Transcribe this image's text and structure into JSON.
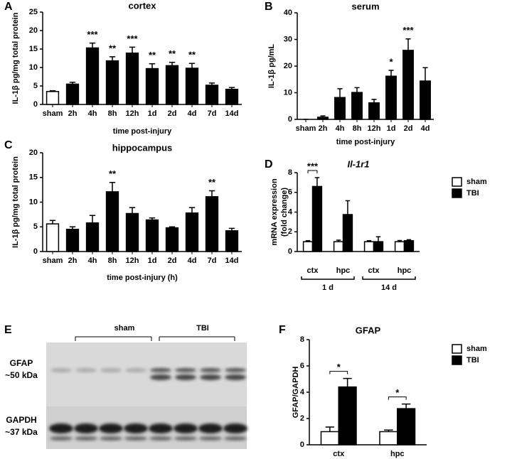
{
  "chart_data": [
    {
      "type": "bar",
      "panel": "A",
      "title": "cortex",
      "ylabel": "IL-1β pg/mg total protein",
      "xlabel": "time post-injury",
      "categories": [
        "sham",
        "2h",
        "4h",
        "8h",
        "12h",
        "1d",
        "2d",
        "4d",
        "7d",
        "14d"
      ],
      "values": [
        3.5,
        5.5,
        15.3,
        11.8,
        13.9,
        9.7,
        10.5,
        9.8,
        5.2,
        4.1
      ],
      "errors": [
        0.2,
        0.5,
        1.3,
        1.1,
        1.6,
        1.3,
        0.9,
        1.3,
        0.6,
        0.5
      ],
      "colors": [
        "#ffffff",
        "#000000",
        "#000000",
        "#000000",
        "#000000",
        "#000000",
        "#000000",
        "#000000",
        "#000000",
        "#000000"
      ],
      "annotations": [
        null,
        null,
        "***",
        "**",
        "***",
        "**",
        "**",
        "**",
        null,
        null
      ],
      "ylim": [
        0,
        25
      ],
      "yticks": [
        0,
        5,
        10,
        15,
        20,
        25
      ]
    },
    {
      "type": "bar",
      "panel": "B",
      "title": "serum",
      "ylabel": "IL-1β pg/mL",
      "xlabel": "time post-injury",
      "categories": [
        "sham",
        "2h",
        "4h",
        "8h",
        "12h",
        "1d",
        "2d",
        "4d"
      ],
      "values": [
        0,
        0.8,
        8.2,
        10.1,
        6.2,
        16.2,
        25.9,
        14.4
      ],
      "errors": [
        0,
        0.5,
        3.3,
        1.8,
        1.3,
        2.2,
        4.3,
        5
      ],
      "colors": [
        "#ffffff",
        "#000000",
        "#000000",
        "#000000",
        "#000000",
        "#000000",
        "#000000",
        "#000000"
      ],
      "annotations": [
        null,
        null,
        null,
        null,
        null,
        "*",
        "***",
        null
      ],
      "ylim": [
        0,
        40
      ],
      "yticks": [
        0,
        10,
        20,
        30,
        40
      ]
    },
    {
      "type": "bar",
      "panel": "C",
      "title": "hippocampus",
      "ylabel": "IL-1β pg/mg total protein",
      "xlabel": "time post-injury (h)",
      "categories": [
        "sham",
        "2h",
        "4h",
        "8h",
        "12h",
        "1d",
        "2d",
        "4d",
        "7d",
        "14d"
      ],
      "values": [
        5.6,
        4.5,
        5.8,
        12.1,
        7.7,
        6.4,
        4.8,
        7.8,
        11.1,
        4.2
      ],
      "errors": [
        0.7,
        0.5,
        1.5,
        1.9,
        1.2,
        0.4,
        0.2,
        1.1,
        1.2,
        0.5
      ],
      "colors": [
        "#ffffff",
        "#000000",
        "#000000",
        "#000000",
        "#000000",
        "#000000",
        "#000000",
        "#000000",
        "#000000",
        "#000000"
      ],
      "annotations": [
        null,
        null,
        null,
        "**",
        null,
        null,
        null,
        null,
        "**",
        null
      ],
      "ylim": [
        0,
        20
      ],
      "yticks": [
        0,
        5,
        10,
        15,
        20
      ]
    },
    {
      "type": "grouped_bar",
      "panel": "D",
      "title": "Il-1r1",
      "ylabel": [
        "mRNA expression",
        "(fold change)"
      ],
      "categories": [
        "ctx",
        "hpc",
        "ctx",
        "hpc"
      ],
      "groups": [
        "1 d",
        "14 d"
      ],
      "series": [
        {
          "name": "sham",
          "color": "#ffffff",
          "values": [
            1,
            1,
            1,
            1
          ],
          "errors": [
            0.1,
            0.15,
            0.1,
            0.12
          ]
        },
        {
          "name": "TBI",
          "color": "#000000",
          "values": [
            6.6,
            3.75,
            1.0,
            1.1
          ],
          "errors": [
            0.9,
            1.4,
            0.5,
            0.1
          ]
        }
      ],
      "annotations": [
        "***",
        null,
        null,
        null
      ],
      "legend": "outside-right",
      "ylim": [
        0,
        8
      ],
      "yticks": [
        0,
        2,
        4,
        6,
        8
      ]
    },
    {
      "type": "grouped_bar",
      "panel": "F",
      "title": "GFAP",
      "ylabel": [
        "GFAP/GAPDH"
      ],
      "categories": [
        "ctx",
        "hpc"
      ],
      "series": [
        {
          "name": "sham",
          "color": "#ffffff",
          "values": [
            1.0,
            1.0
          ],
          "errors": [
            0.35,
            0.12
          ]
        },
        {
          "name": "TBI",
          "color": "#000000",
          "values": [
            4.4,
            2.75
          ],
          "errors": [
            0.65,
            0.35
          ]
        }
      ],
      "annotations": [
        "*",
        "*"
      ],
      "legend": "outside-right",
      "ylim": [
        0,
        8
      ],
      "yticks": [
        0,
        2,
        4,
        6,
        8
      ]
    }
  ],
  "blot": {
    "panel": "E",
    "groups": [
      "sham",
      "TBI"
    ],
    "rows": [
      {
        "protein": "GFAP",
        "size": "~50 kDa"
      },
      {
        "protein": "GAPDH",
        "size": "~37 kDa"
      }
    ]
  }
}
